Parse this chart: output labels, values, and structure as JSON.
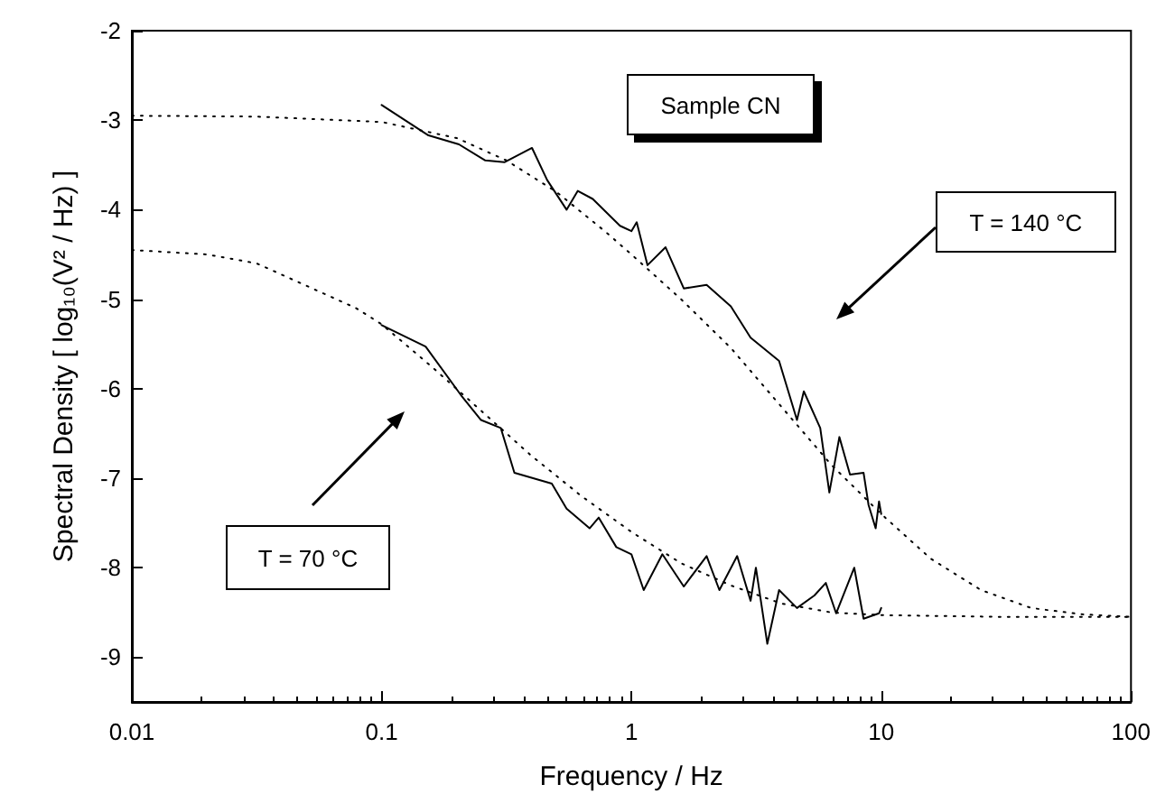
{
  "chart_data": {
    "type": "line",
    "xlabel": "Frequency / Hz",
    "ylabel": "Spectral Density [ log₁₀(V² / Hz) ]",
    "annotations": [
      "Sample CN",
      "T = 140 °C",
      "T = 70 °C"
    ],
    "log": "x",
    "xlim": [
      0.01,
      100
    ],
    "xticks": [
      0.01,
      0.1,
      1,
      10,
      100
    ],
    "ylim": [
      -9.5,
      -2
    ],
    "yticks": [
      -9,
      -8,
      -7,
      -6,
      -5,
      -4,
      -3,
      -2
    ],
    "grid": false,
    "marker": "none",
    "series": [
      {
        "color": "#000000",
        "line_style": "solid",
        "x": [
          0.1,
          0.154,
          0.204,
          0.26,
          0.31,
          0.4,
          0.46,
          0.55,
          0.61,
          0.7,
          0.9,
          1.0,
          1.05,
          1.16,
          1.37,
          1.62,
          2.0,
          2.5,
          3.0,
          3.9,
          4.6,
          4.9,
          5.7,
          6.2,
          6.8,
          7.5,
          8.5,
          8.9,
          9.5,
          9.8,
          10
        ],
        "values": [
          -2.83,
          -3.17,
          -3.27,
          -3.45,
          -3.47,
          -3.31,
          -3.67,
          -4.0,
          -3.79,
          -3.88,
          -4.18,
          -4.24,
          -4.14,
          -4.62,
          -4.42,
          -4.88,
          -4.84,
          -5.08,
          -5.43,
          -5.69,
          -6.35,
          -6.03,
          -6.44,
          -7.16,
          -6.54,
          -6.96,
          -6.94,
          -7.3,
          -7.56,
          -7.26,
          -7.4
        ]
      },
      {
        "color": "#000000",
        "line_style": "dotted",
        "x": [
          0.01,
          0.0316,
          0.1,
          0.2,
          0.316,
          0.5,
          0.79,
          1,
          1.58,
          2.51,
          3.98,
          6.31,
          10,
          15.8,
          25.1,
          39.8,
          63.1,
          100
        ],
        "values": [
          -2.95,
          -2.96,
          -3.02,
          -3.2,
          -3.45,
          -3.8,
          -4.25,
          -4.5,
          -5.0,
          -5.55,
          -6.2,
          -6.85,
          -7.4,
          -7.9,
          -8.25,
          -8.45,
          -8.52,
          -8.55
        ]
      },
      {
        "color": "#000000",
        "line_style": "solid",
        "x": [
          0.1,
          0.15,
          0.21,
          0.25,
          0.3,
          0.34,
          0.48,
          0.55,
          0.68,
          0.74,
          0.87,
          1.0,
          1.12,
          1.33,
          1.62,
          2.0,
          2.25,
          2.65,
          3.0,
          3.15,
          3.5,
          3.9,
          4.6,
          5.4,
          6.0,
          6.6,
          7.8,
          8.5,
          9.8,
          10
        ],
        "values": [
          -5.29,
          -5.53,
          -6.09,
          -6.35,
          -6.44,
          -6.94,
          -7.06,
          -7.34,
          -7.56,
          -7.44,
          -7.77,
          -7.85,
          -8.25,
          -7.85,
          -8.21,
          -7.87,
          -8.25,
          -7.87,
          -8.37,
          -8.0,
          -8.85,
          -8.25,
          -8.45,
          -8.31,
          -8.17,
          -8.51,
          -8.0,
          -8.57,
          -8.51,
          -8.45
        ]
      },
      {
        "color": "#000000",
        "line_style": "dotted",
        "x": [
          0.01,
          0.02,
          0.0316,
          0.05,
          0.079,
          0.1,
          0.158,
          0.251,
          0.398,
          0.631,
          1,
          1.58,
          2.51,
          3.98,
          6.31,
          10,
          31.6,
          100
        ],
        "values": [
          -4.45,
          -4.5,
          -4.6,
          -4.85,
          -5.1,
          -5.28,
          -5.75,
          -6.25,
          -6.75,
          -7.2,
          -7.6,
          -7.95,
          -8.2,
          -8.4,
          -8.5,
          -8.53,
          -8.55,
          -8.55
        ]
      }
    ]
  }
}
